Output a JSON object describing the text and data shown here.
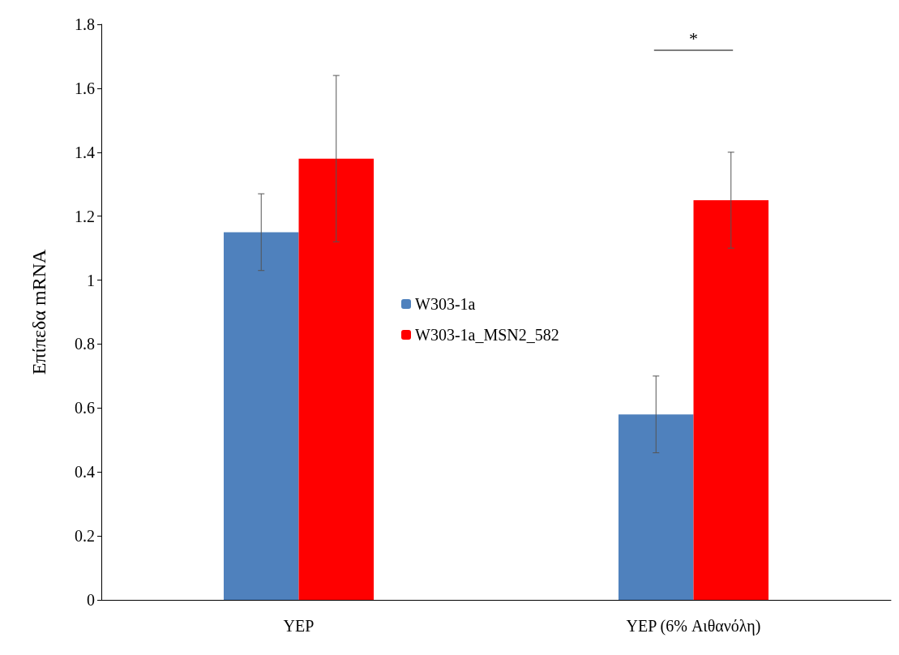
{
  "chart_data": {
    "type": "bar",
    "ylabel": "Επίπεδα mRNA",
    "categories": [
      "YEP",
      "YEP (6% Αιθανόλη)"
    ],
    "series": [
      {
        "name": "W303-1a",
        "color": "#4f81bd",
        "values": [
          1.15,
          0.58
        ],
        "errors": [
          0.12,
          0.12
        ]
      },
      {
        "name": "W303-1a_MSN2_582",
        "color": "#ff0000",
        "values": [
          1.38,
          1.25
        ],
        "errors": [
          0.26,
          0.15
        ]
      }
    ],
    "ylim": [
      0,
      1.8
    ],
    "yticks": [
      0,
      0.2,
      0.4,
      0.6,
      0.8,
      1,
      1.2,
      1.4,
      1.6,
      1.8
    ],
    "grid": false,
    "legend": "center",
    "annotations": [
      "*"
    ]
  }
}
